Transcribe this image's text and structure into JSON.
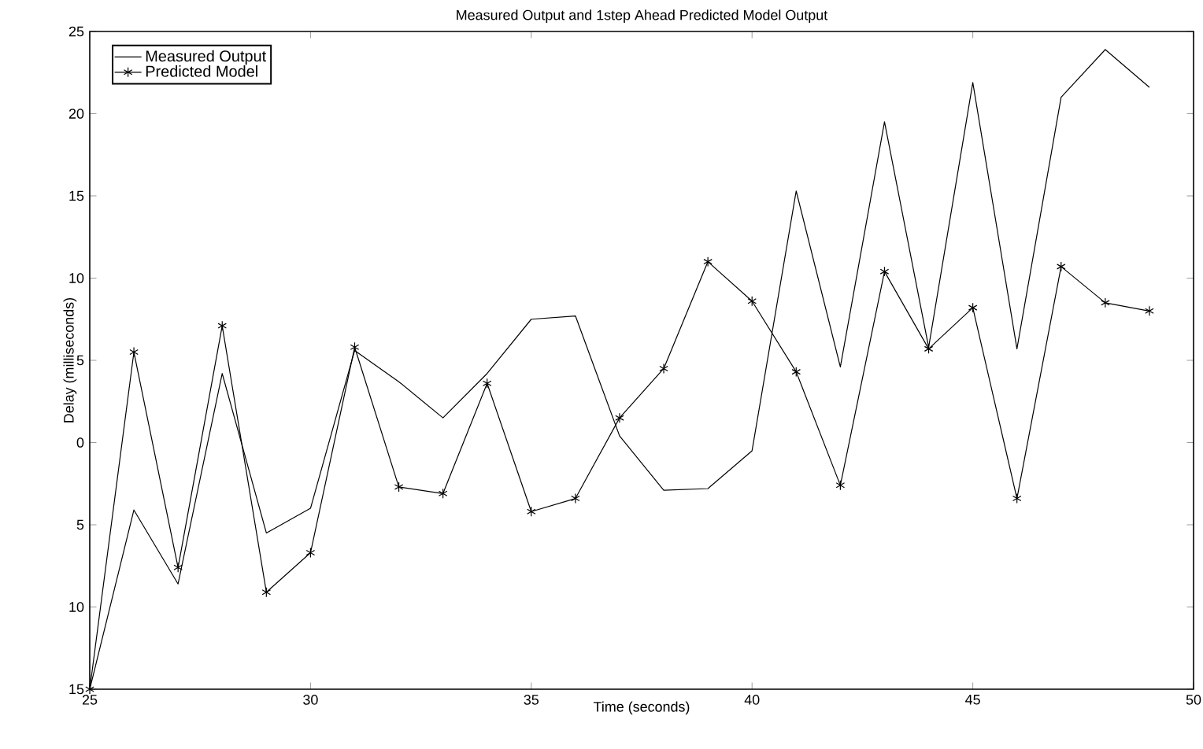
{
  "chart_data": {
    "type": "line",
    "title": "Measured Output and 1step Ahead Predicted Model Output",
    "xlabel": "Time (seconds)",
    "ylabel": "Delay (milliseconds)",
    "x": [
      25,
      26,
      27,
      28,
      29,
      30,
      31,
      32,
      33,
      34,
      35,
      36,
      37,
      38,
      39,
      40,
      41,
      42,
      43,
      44,
      45,
      46,
      47,
      48,
      49
    ],
    "series": [
      {
        "name": "Measured Output",
        "color": "#000000",
        "marker": "none",
        "values": [
          -15,
          -4.1,
          -8.6,
          4.2,
          -5.5,
          -4.0,
          5.6,
          3.7,
          1.5,
          4.2,
          7.5,
          7.7,
          0.4,
          -2.9,
          -2.8,
          -0.5,
          15.3,
          4.6,
          19.5,
          5.8,
          21.9,
          5.7,
          21.0,
          23.9,
          21.6
        ]
      },
      {
        "name": "Predicted Model",
        "color": "#000000",
        "marker": "cross",
        "values": [
          -15,
          5.5,
          -7.6,
          7.1,
          -9.1,
          -6.7,
          5.8,
          -2.7,
          -3.1,
          3.6,
          -4.2,
          -3.4,
          1.5,
          4.5,
          11.0,
          8.6,
          4.3,
          -2.6,
          10.4,
          5.7,
          8.2,
          -3.4,
          10.7,
          8.5,
          8.0
        ]
      }
    ],
    "xlim": [
      25,
      50
    ],
    "xticks": [
      25,
      30,
      35,
      40,
      45,
      50
    ],
    "ylim": [
      -15,
      25
    ],
    "yticks": [
      {
        "value": -15,
        "label": "15"
      },
      {
        "value": -10,
        "label": "10"
      },
      {
        "value": -5,
        "label": "5"
      },
      0,
      5,
      10,
      15,
      20,
      25
    ],
    "grid": false,
    "legend": "top left",
    "line_style": "solid"
  }
}
